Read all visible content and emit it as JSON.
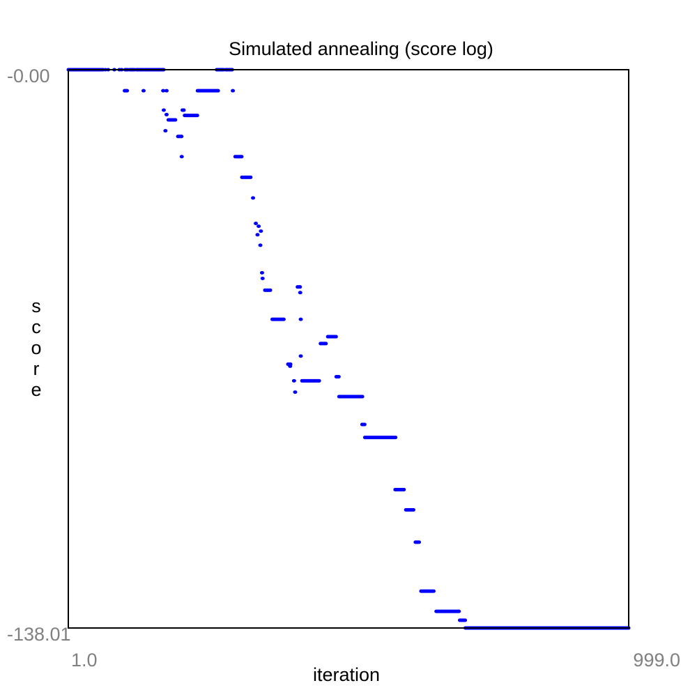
{
  "chart_data": {
    "type": "scatter",
    "title": "Simulated annealing (score log)",
    "xlabel": "iteration",
    "ylabel": "score",
    "xlim": [
      1.0,
      999.0
    ],
    "ylim": [
      -138.01,
      0.0
    ],
    "x_tick_labels": [
      "1.0",
      "999.0"
    ],
    "y_tick_labels": [
      "-0.00",
      "-138.01"
    ],
    "grid": false,
    "legend": "none",
    "marker_color": "#0000ff",
    "series": [
      {
        "segments": [
          {
            "x": [
              1,
              63
            ],
            "y": 0.0
          },
          {
            "x": 67,
            "y": 0.0
          },
          {
            "x": 72,
            "y": 0.0
          },
          {
            "x": 83,
            "y": 0.0
          },
          {
            "x": 92,
            "y": 0.0
          },
          {
            "x": 96,
            "y": 0.0
          },
          {
            "x": [
              102,
              107
            ],
            "y": 0.0
          },
          {
            "x": [
              110,
              119
            ],
            "y": 0.0
          },
          {
            "x": [
              122,
              135
            ],
            "y": 0.0
          },
          {
            "x": [
              137,
              171
            ],
            "y": 0.0
          },
          {
            "x": [
              265,
              278
            ],
            "y": 0.0
          },
          {
            "x": [
              281,
              293
            ],
            "y": 0.0
          },
          {
            "x": [
              101,
              106
            ],
            "y": -5.2
          },
          {
            "x": 135,
            "y": -5.2
          },
          {
            "x": 170,
            "y": -5.2
          },
          {
            "x": 176,
            "y": -5.2
          },
          {
            "x": [
              231,
              268
            ],
            "y": -5.2
          },
          {
            "x": 294,
            "y": -5.2
          },
          {
            "x": 171,
            "y": -10.0
          },
          {
            "x": 176,
            "y": -11.1
          },
          {
            "x": [
              179,
              192
            ],
            "y": -12.4
          },
          {
            "x": [
              204,
              207
            ],
            "y": -10.0
          },
          {
            "x": [
              208,
              231
            ],
            "y": -11.3
          },
          {
            "x": 174,
            "y": -15.1
          },
          {
            "x": [
              196,
              203
            ],
            "y": -16.5
          },
          {
            "x": 203,
            "y": -21.5
          },
          {
            "x": [
              298,
              310
            ],
            "y": -21.5
          },
          {
            "x": [
              310,
              326
            ],
            "y": -26.6
          },
          {
            "x": 330,
            "y": -31.7
          },
          {
            "x": 335,
            "y": -38.0
          },
          {
            "x": 340,
            "y": -38.7
          },
          {
            "x": 344,
            "y": -39.9
          },
          {
            "x": 338,
            "y": -40.8
          },
          {
            "x": 343,
            "y": -43.4
          },
          {
            "x": 346,
            "y": -50.2
          },
          {
            "x": 347,
            "y": -51.6
          },
          {
            "x": [
              351,
              361
            ],
            "y": -54.5
          },
          {
            "x": [
              409,
              414
            ],
            "y": -53.7
          },
          {
            "x": 414,
            "y": -55.1
          },
          {
            "x": [
              364,
              385
            ],
            "y": -61.7
          },
          {
            "x": 415,
            "y": -61.7
          },
          {
            "x": [
              450,
              460
            ],
            "y": -67.7
          },
          {
            "x": [
              463,
              478
            ],
            "y": -66.0
          },
          {
            "x": 415,
            "y": -70.8
          },
          {
            "x": [
              392,
              397
            ],
            "y": -72.8
          },
          {
            "x": 396,
            "y": -73.3
          },
          {
            "x": [
              417,
              448
            ],
            "y": -76.9
          },
          {
            "x": 403,
            "y": -76.9
          },
          {
            "x": [
              478,
              483
            ],
            "y": -75.9
          },
          {
            "x": 405,
            "y": -79.7
          },
          {
            "x": [
              483,
              525
            ],
            "y": -80.8
          },
          {
            "x": [
              524,
              529
            ],
            "y": -87.7
          },
          {
            "x": [
              529,
              584
            ],
            "y": -90.9
          },
          {
            "x": [
              583,
              599
            ],
            "y": -103.8
          },
          {
            "x": [
              602,
              616
            ],
            "y": -108.8
          },
          {
            "x": [
              619,
              626
            ],
            "y": -116.8
          },
          {
            "x": [
              629,
              652
            ],
            "y": -128.9
          },
          {
            "x": [
              656,
              697
            ],
            "y": -133.9
          },
          {
            "x": [
              698,
              708
            ],
            "y": -136.1
          },
          {
            "x": [
              708,
              999
            ],
            "y": -138.0
          }
        ]
      }
    ]
  }
}
